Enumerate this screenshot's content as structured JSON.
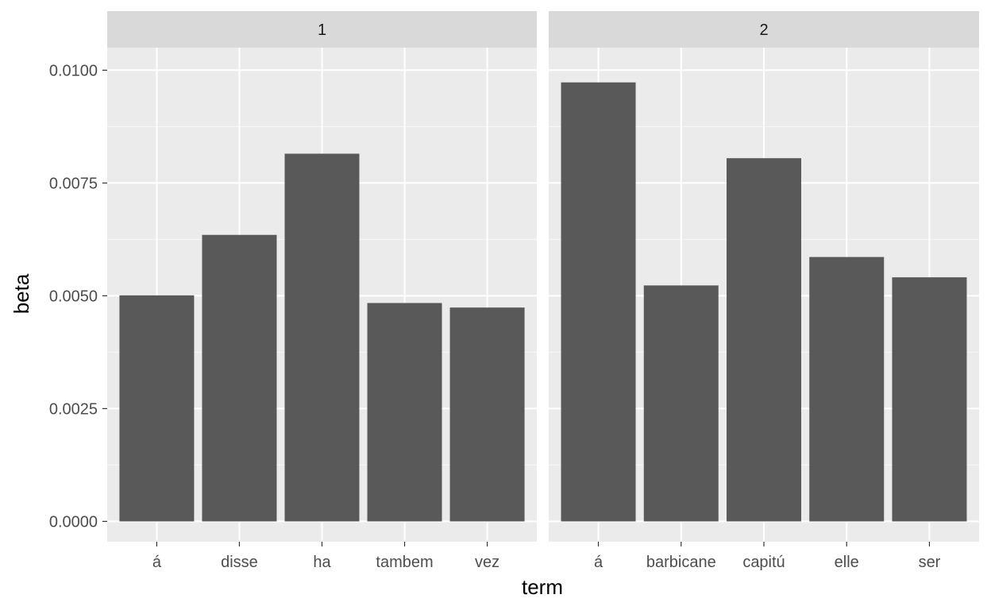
{
  "chart_data": {
    "type": "bar",
    "xlabel": "term",
    "ylabel": "beta",
    "ylim": [
      -0.00045,
      0.0105
    ],
    "y_ticks": [
      0.0,
      0.0025,
      0.005,
      0.0075,
      0.01
    ],
    "y_tick_labels": [
      "0.0000",
      "0.0025",
      "0.0050",
      "0.0075",
      "0.0100"
    ],
    "grid": true,
    "colors": {
      "bar": "#595959",
      "panel_bg": "#ebebeb",
      "strip_bg": "#d9d9d9",
      "grid_major": "#ffffff"
    },
    "facets": [
      {
        "label": "1",
        "categories": [
          "á",
          "disse",
          "ha",
          "tambem",
          "vez"
        ],
        "values": [
          0.00501,
          0.00635,
          0.00815,
          0.00484,
          0.00474
        ]
      },
      {
        "label": "2",
        "categories": [
          "á",
          "barbicane",
          "capitú",
          "elle",
          "ser"
        ],
        "values": [
          0.00973,
          0.00523,
          0.00805,
          0.00586,
          0.00541
        ]
      }
    ]
  }
}
